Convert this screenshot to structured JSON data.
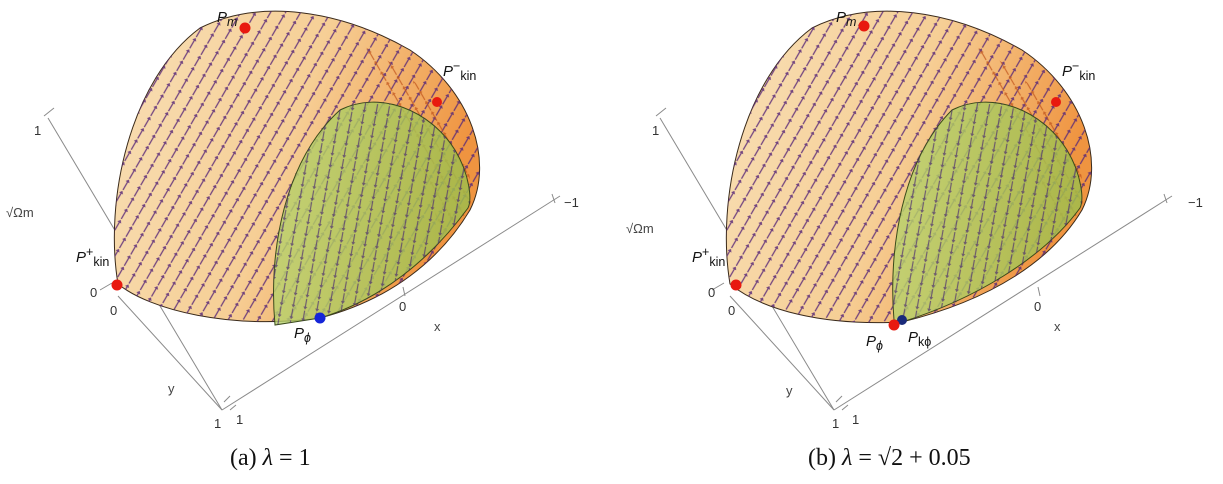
{
  "panels": [
    {
      "id": "a",
      "caption": {
        "tag": "(a)",
        "lambda_symbol": "λ",
        "lambda_expr": " = 1"
      },
      "points": {
        "Pm": {
          "base": "P",
          "sub": "m",
          "color": "#e8190f"
        },
        "Pkin_minus": {
          "base": "P",
          "sup": "−",
          "sub": "kin",
          "color": "#e8190f"
        },
        "Pkin_plus": {
          "base": "P",
          "sup": "+",
          "sub": "kin",
          "color": "#e8190f"
        },
        "Pphi": {
          "base": "P",
          "sub": "ϕ",
          "color": "#1525d8"
        }
      },
      "axes": {
        "omega_label": "√Ωm",
        "x_label": "x",
        "y_label": "y",
        "ticks": {
          "omega_top": "1",
          "omega_zero": "0",
          "x_zero": "0",
          "x_minus1": "−1",
          "y_zero": "0",
          "y_one_a": "1",
          "y_one_b": "1"
        }
      }
    },
    {
      "id": "b",
      "caption": {
        "tag": "(b)",
        "lambda_symbol": "λ",
        "lambda_expr": " = √2 + 0.05"
      },
      "points": {
        "Pm": {
          "base": "P",
          "sub": "m",
          "color": "#e8190f"
        },
        "Pkin_minus": {
          "base": "P",
          "sup": "−",
          "sub": "kin",
          "color": "#e8190f"
        },
        "Pkin_plus": {
          "base": "P",
          "sup": "+",
          "sub": "kin",
          "color": "#e8190f"
        },
        "Pphi": {
          "base": "P",
          "sub": "ϕ",
          "color": "#e8190f"
        },
        "Pkphi": {
          "base": "P",
          "sub": "kϕ",
          "color": "#1a2a7a"
        }
      },
      "axes": {
        "omega_label": "√Ωm",
        "x_label": "x",
        "y_label": "y",
        "ticks": {
          "omega_top": "1",
          "omega_zero": "0",
          "x_zero": "0",
          "x_minus1": "−1",
          "y_zero": "0",
          "y_one_a": "1",
          "y_one_b": "1"
        }
      }
    }
  ],
  "colors": {
    "surface_warm": "#f6cf96",
    "surface_orange": "#f09a3a",
    "green_region": "#a9c95a",
    "arrow_dark": "#5a2a78",
    "arrow_orange": "#d8621e",
    "axis": "#777777"
  }
}
